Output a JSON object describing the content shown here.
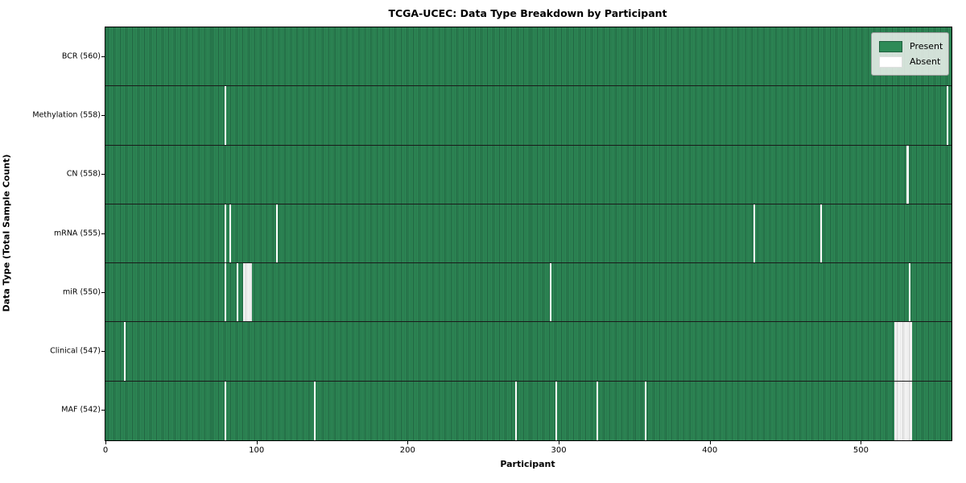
{
  "chart_data": {
    "type": "heatmap",
    "title": "TCGA-UCEC: Data Type Breakdown by Participant",
    "xlabel": "Participant",
    "ylabel": "Data Type (Total Sample Count)",
    "x_range": [
      0,
      560
    ],
    "x_ticks": [
      0,
      100,
      200,
      300,
      400,
      500
    ],
    "grid": false,
    "legend_position": "upper right",
    "legend": [
      {
        "label": "Present",
        "color": "#2e8b57"
      },
      {
        "label": "Absent",
        "color": "#ffffff"
      }
    ],
    "colors": {
      "present": "#2e8b57",
      "present_edge": "#20603f",
      "absent": "#ffffff",
      "absent_edge": "#c6c6c6",
      "row_separator": "#1a1a1a"
    },
    "total_participants": 560,
    "rows": [
      {
        "label": "BCR (560)",
        "data_type": "BCR",
        "present_count": 560,
        "absent_count": 0,
        "absent_participants": []
      },
      {
        "label": "Methylation (558)",
        "data_type": "Methylation",
        "present_count": 558,
        "absent_count": 2,
        "absent_participants": [
          79,
          557
        ]
      },
      {
        "label": "CN (558)",
        "data_type": "CN",
        "present_count": 558,
        "absent_count": 2,
        "absent_participants": [
          530,
          531
        ]
      },
      {
        "label": "mRNA (555)",
        "data_type": "mRNA",
        "present_count": 555,
        "absent_count": 5,
        "absent_participants": [
          79,
          82,
          113,
          429,
          473
        ]
      },
      {
        "label": "miR (550)",
        "data_type": "miR",
        "present_count": 550,
        "absent_count": 10,
        "absent_participants": [
          79,
          87,
          91,
          92,
          93,
          94,
          95,
          96,
          294,
          532
        ]
      },
      {
        "label": "Clinical (547)",
        "data_type": "Clinical",
        "present_count": 547,
        "absent_count": 13,
        "absent_participants": [
          12,
          522,
          523,
          524,
          525,
          526,
          527,
          528,
          529,
          530,
          531,
          532,
          533
        ]
      },
      {
        "label": "MAF (542)",
        "data_type": "MAF",
        "present_count": 542,
        "absent_count": 18,
        "absent_participants": [
          79,
          138,
          271,
          298,
          325,
          357,
          522,
          523,
          524,
          525,
          526,
          527,
          528,
          529,
          530,
          531,
          532,
          533
        ]
      }
    ]
  }
}
